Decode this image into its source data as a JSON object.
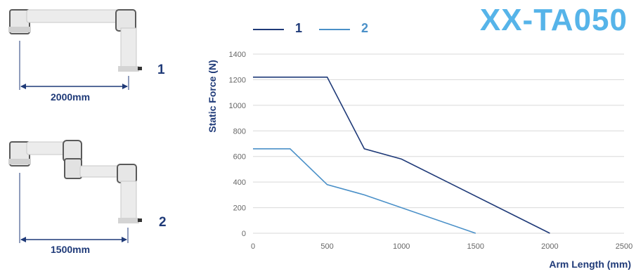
{
  "left_panel": {
    "arm1": {
      "number": "1",
      "dimension": "2000mm"
    },
    "arm2": {
      "number": "2",
      "dimension": "1500mm"
    }
  },
  "model": "XX-TA050",
  "colors": {
    "series1": "#1f3a78",
    "series2": "#4a90c8",
    "title": "#56b4e9",
    "grid": "#d9d9d9"
  },
  "chart_data": {
    "type": "line",
    "xlabel": "Arm Length (mm)",
    "ylabel": "Static Force (N)",
    "xlim": [
      0,
      2500
    ],
    "ylim": [
      0,
      1400
    ],
    "xticks": [
      0,
      500,
      1000,
      1500,
      2000,
      2500
    ],
    "yticks": [
      0,
      200,
      400,
      600,
      800,
      1000,
      1200,
      1400
    ],
    "grid": "horizontal",
    "legend_position": "top",
    "series": [
      {
        "name": "1",
        "x": [
          0,
          500,
          750,
          1000,
          2000
        ],
        "y": [
          1220,
          1220,
          660,
          580,
          0
        ]
      },
      {
        "name": "2",
        "x": [
          0,
          250,
          500,
          750,
          1500
        ],
        "y": [
          660,
          660,
          380,
          300,
          0
        ]
      }
    ]
  }
}
